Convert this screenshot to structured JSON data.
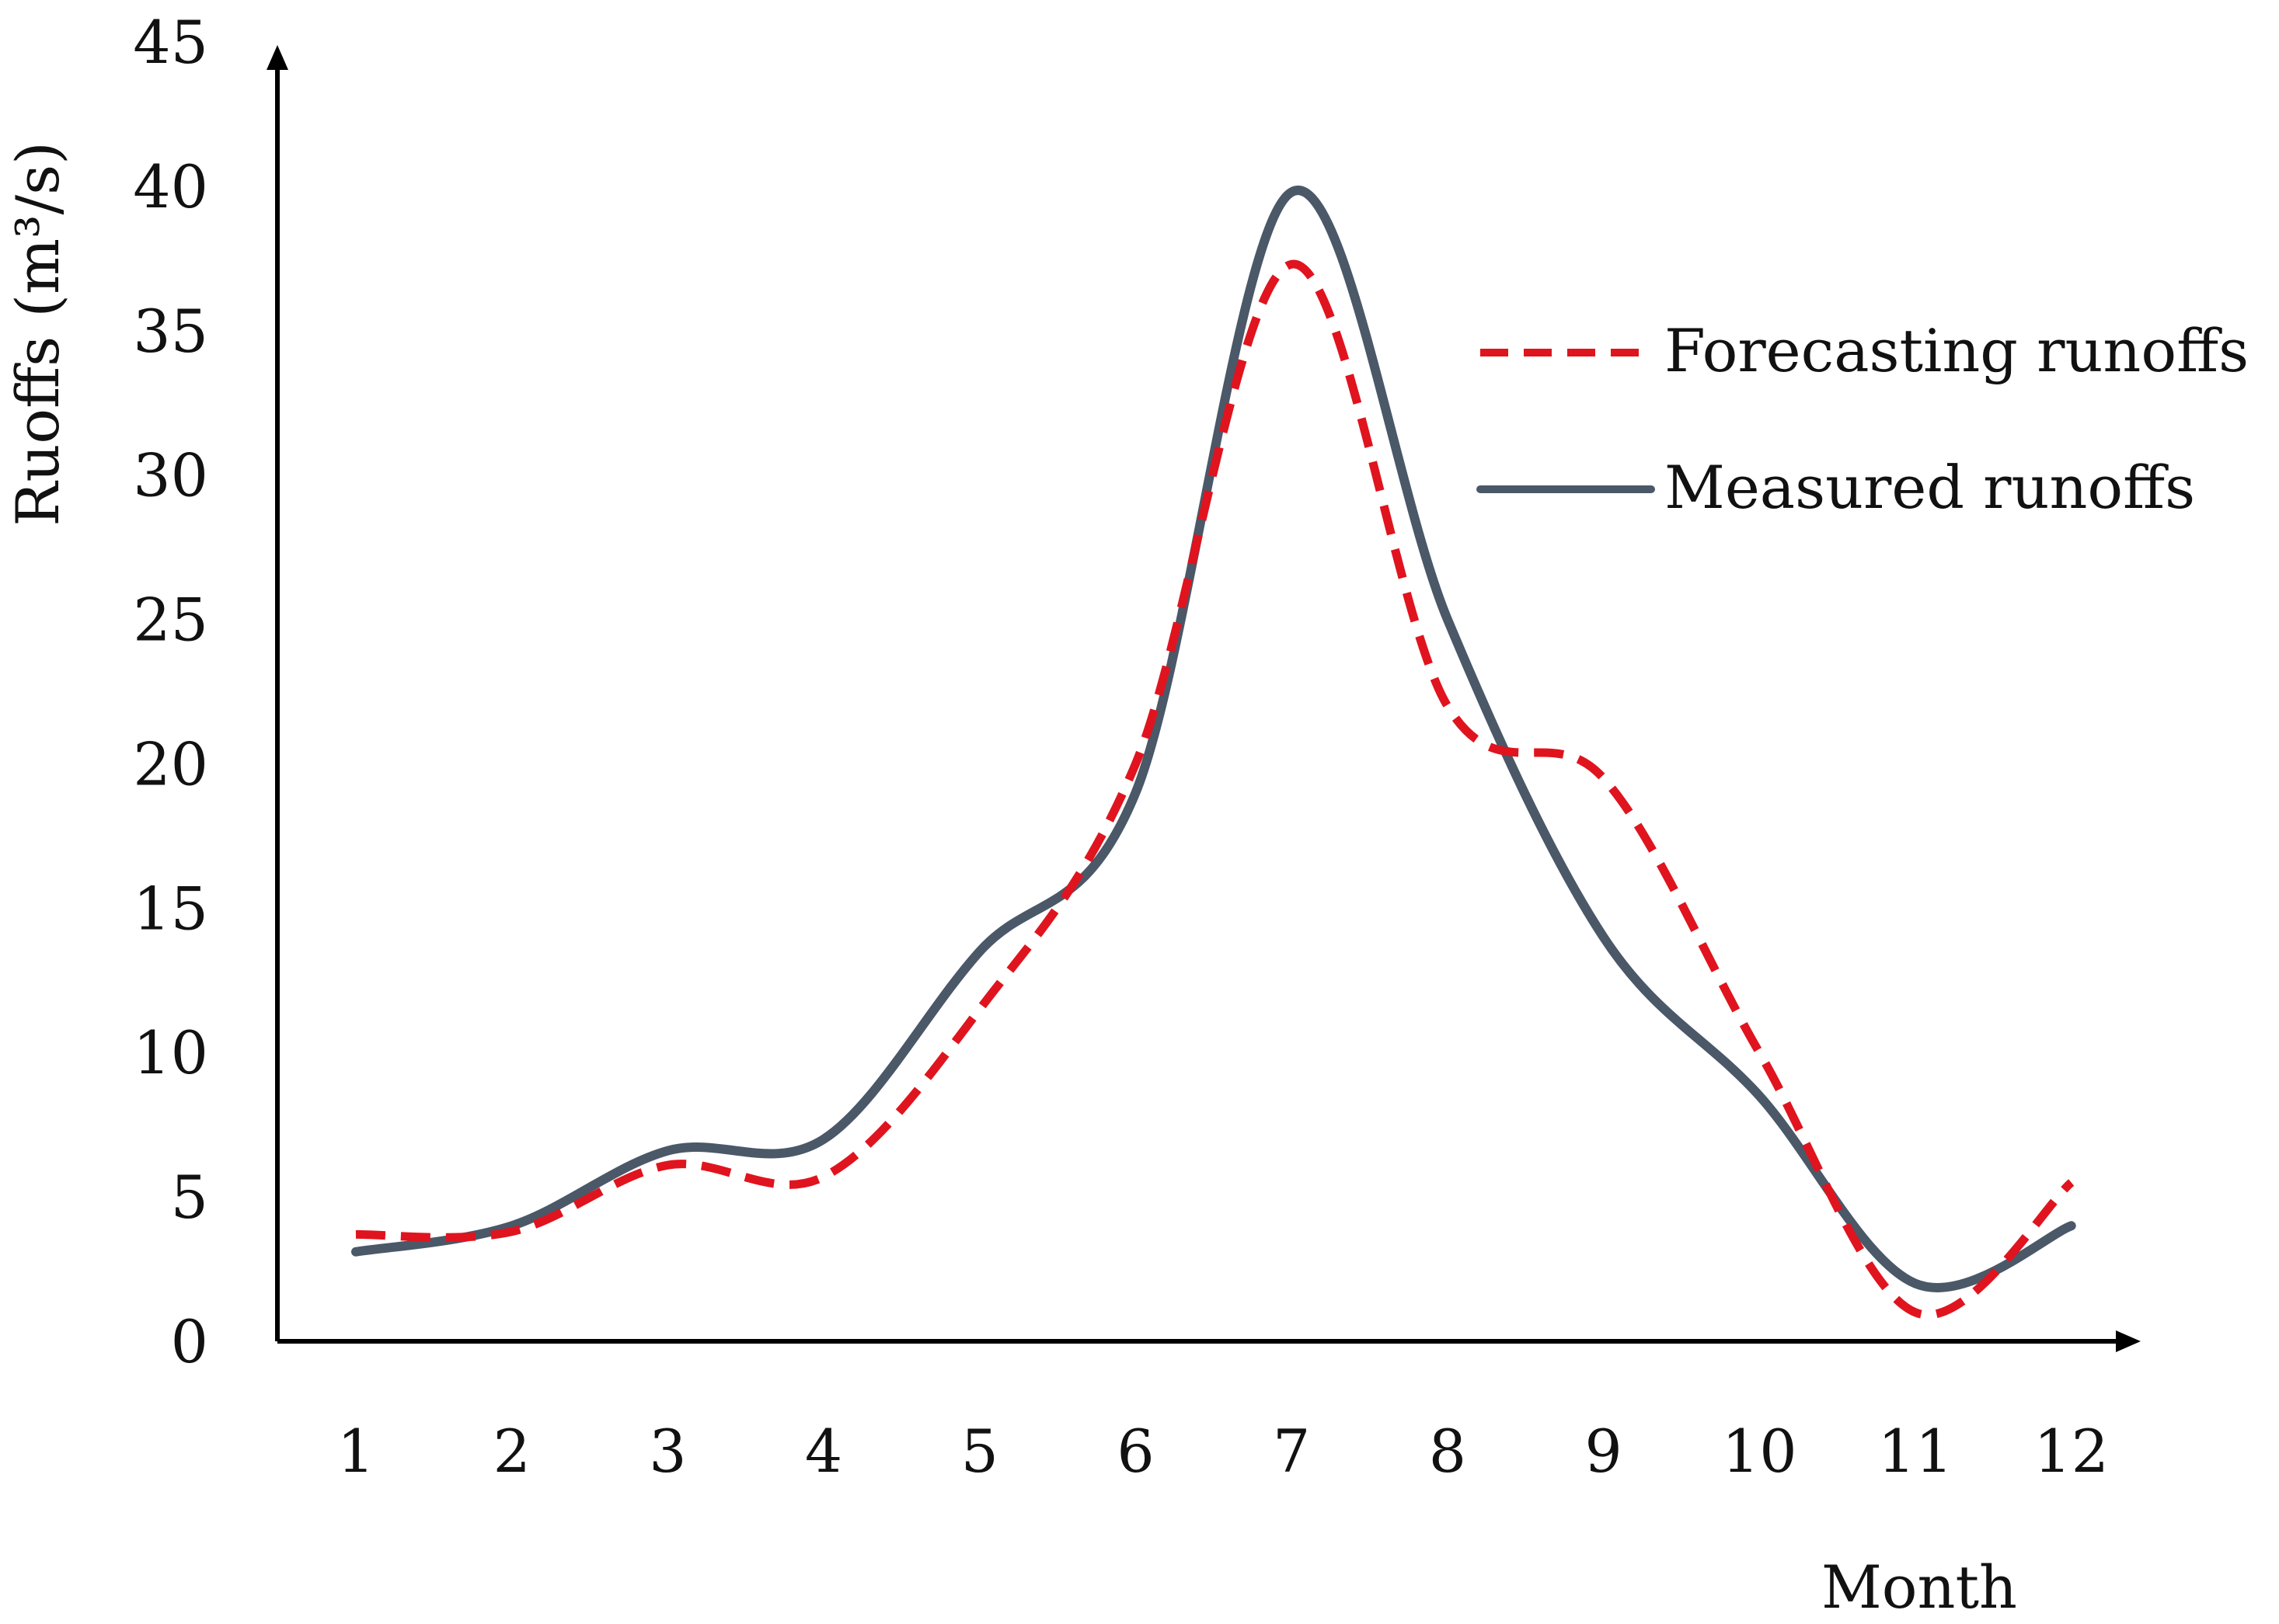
{
  "chart_data": {
    "type": "line",
    "title": "",
    "xlabel": "Month",
    "ylabel": "Ruoffs (m³/s)",
    "ylim": [
      0,
      45
    ],
    "yticks": [
      "0",
      "5",
      "10",
      "15",
      "20",
      "25",
      "30",
      "35",
      "40",
      "45"
    ],
    "categories": [
      "1",
      "2",
      "3",
      "4",
      "5",
      "6",
      "7",
      "8",
      "9",
      "10",
      "11",
      "12"
    ],
    "grid": false,
    "legend_position": "top-right",
    "series": [
      {
        "name": "Forecasting runoffs",
        "style": "dashed",
        "color": "#e0141e",
        "values": [
          3.7,
          3.8,
          6.1,
          5.7,
          11.5,
          20.0,
          37.3,
          22.0,
          19.5,
          10.0,
          1.0,
          5.5
        ]
      },
      {
        "name": "Measured runoffs",
        "style": "solid",
        "color": "#4a5868",
        "values": [
          3.1,
          4.0,
          6.6,
          7.0,
          13.5,
          19.0,
          39.8,
          25.0,
          14.0,
          8.5,
          2.0,
          4.0
        ]
      }
    ]
  }
}
